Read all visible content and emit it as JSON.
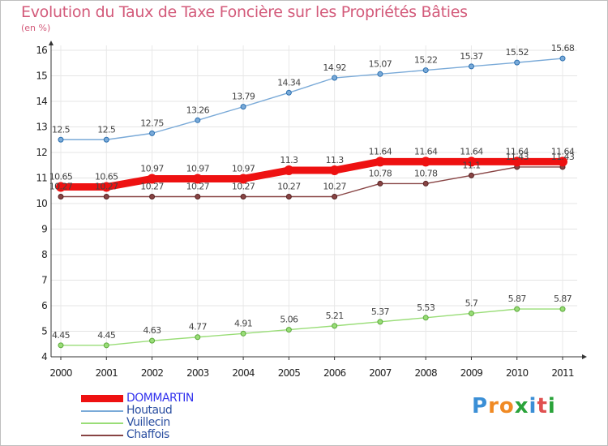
{
  "header": {
    "title": "Evolution du Taux de Taxe Foncière sur les Propriétés Bâties",
    "unit": "(en %)"
  },
  "brand": {
    "letters": [
      "P",
      "r",
      "o",
      "x",
      "i",
      "t",
      "i"
    ],
    "colors": [
      "#3b8fd6",
      "#f08a24",
      "#f08a24",
      "#2aa33a",
      "#3b8fd6",
      "#e05050",
      "#2aa33a"
    ]
  },
  "chart_data": {
    "type": "line",
    "title": "Evolution du Taux de Taxe Foncière sur les Propriétés Bâties",
    "ylabel": "(en %)",
    "xlabel": "",
    "x": [
      "2000",
      "2001",
      "2002",
      "2003",
      "2004",
      "2005",
      "2006",
      "2007",
      "2008",
      "2009",
      "2010",
      "2011"
    ],
    "ylim": [
      4,
      16
    ],
    "yticks": [
      4,
      5,
      6,
      7,
      8,
      9,
      10,
      11,
      12,
      13,
      14,
      15,
      16
    ],
    "grid": true,
    "legend": "bottom-left",
    "series": [
      {
        "name": "DOMMARTIN",
        "color": "#ee1111",
        "emphasis": true,
        "values": [
          10.65,
          10.65,
          10.97,
          10.97,
          10.97,
          11.3,
          11.3,
          11.64,
          11.64,
          11.64,
          11.64,
          11.64
        ],
        "labels": [
          "10.65",
          "10.65",
          "10.97",
          "10.97",
          "10.97",
          "11.3",
          "11.3",
          "11.64",
          "11.64",
          "11.64",
          "11.64",
          "11.64"
        ]
      },
      {
        "name": "Houtaud",
        "color": "#7aaad8",
        "values": [
          12.5,
          12.5,
          12.75,
          13.26,
          13.79,
          14.34,
          14.92,
          15.07,
          15.22,
          15.37,
          15.52,
          15.68
        ],
        "labels": [
          "12.5",
          "12.5",
          "12.75",
          "13.26",
          "13.79",
          "14.34",
          "14.92",
          "15.07",
          "15.22",
          "15.37",
          "15.52",
          "15.68"
        ]
      },
      {
        "name": "Vuillecin",
        "color": "#99dd77",
        "values": [
          4.45,
          4.45,
          4.63,
          4.77,
          4.91,
          5.06,
          5.21,
          5.37,
          5.53,
          5.7,
          5.87,
          5.87
        ],
        "labels": [
          "4.45",
          "4.45",
          "4.63",
          "4.77",
          "4.91",
          "5.06",
          "5.21",
          "5.37",
          "5.53",
          "5.7",
          "5.87",
          "5.87"
        ]
      },
      {
        "name": "Chaffois",
        "color": "#884444",
        "values": [
          10.27,
          10.27,
          10.27,
          10.27,
          10.27,
          10.27,
          10.27,
          10.78,
          10.78,
          11.1,
          11.43,
          11.43
        ],
        "labels": [
          "10.27",
          "10.27",
          "10.27",
          "10.27",
          "10.27",
          "10.27",
          "10.27",
          "10.78",
          "10.78",
          "11.1",
          "11.43",
          "11.43"
        ]
      }
    ]
  }
}
